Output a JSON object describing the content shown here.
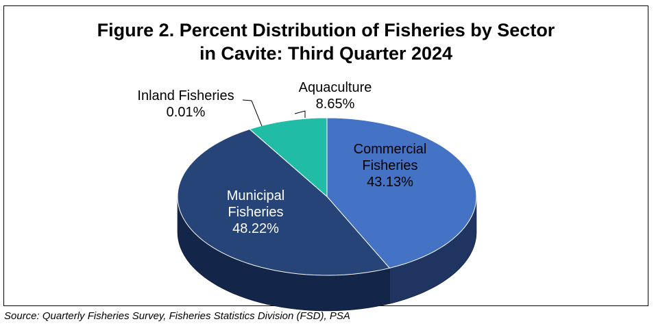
{
  "chart_data": {
    "type": "pie",
    "title_line1": "Figure 2. Percent Distribution of Fisheries by Sector",
    "title_line2": "in Cavite: Third Quarter 2024",
    "slices": [
      {
        "name": "Commercial Fisheries",
        "label_lines": [
          "Commercial",
          "Fisheries"
        ],
        "value": 43.13,
        "value_label": "43.13%",
        "color": "#4472C4",
        "side_color": "#1F3461"
      },
      {
        "name": "Municipal Fisheries",
        "label_lines": [
          "Municipal",
          "Fisheries"
        ],
        "value": 48.22,
        "value_label": "48.22%",
        "color": "#264478",
        "side_color": "#14254A"
      },
      {
        "name": "Inland Fisheries",
        "label_lines": [
          "Inland Fisheries"
        ],
        "value": 0.01,
        "value_label": "0.01%",
        "color": "#7F7F7F",
        "side_color": "#4F4F4F"
      },
      {
        "name": "Aquaculture",
        "label_lines": [
          "Aquaculture"
        ],
        "value": 8.65,
        "value_label": "8.65%",
        "color": "#20BCA6",
        "side_color": "#10786A"
      }
    ],
    "style": "3d-pie",
    "legend": "none"
  },
  "source": "Source: Quarterly Fisheries Survey, Fisheries Statistics Division (FSD), PSA"
}
